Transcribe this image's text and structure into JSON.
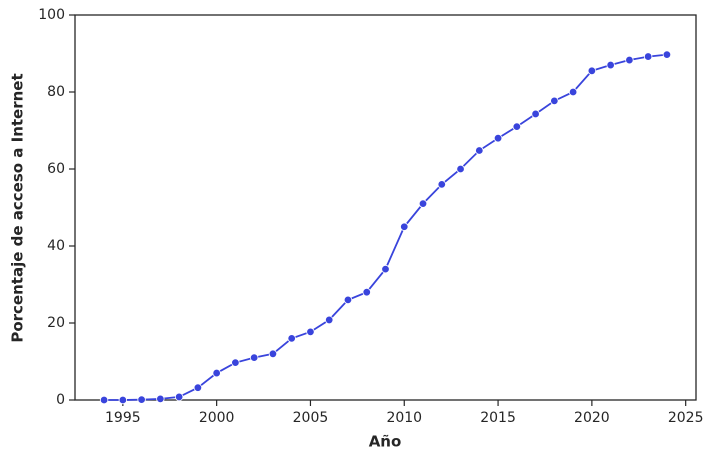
{
  "chart_data": {
    "type": "line",
    "xlabel": "Año",
    "ylabel": "Porcentaje de acceso a Internet",
    "x": [
      1994,
      1995,
      1996,
      1997,
      1998,
      1999,
      2000,
      2001,
      2002,
      2003,
      2004,
      2005,
      2006,
      2007,
      2008,
      2009,
      2010,
      2011,
      2012,
      2013,
      2014,
      2015,
      2016,
      2017,
      2018,
      2019,
      2020,
      2021,
      2022,
      2023,
      2024
    ],
    "series": [
      {
        "color": "#3944dc",
        "values": [
          0,
          0,
          0.1,
          0.3,
          0.8,
          3.2,
          7,
          9.7,
          11,
          12,
          16,
          17.7,
          20.8,
          26,
          28,
          34,
          45,
          51,
          56,
          60,
          64.8,
          68,
          71,
          74.3,
          77.7,
          80,
          85.5,
          87,
          88.3,
          89.2,
          89.7
        ]
      }
    ],
    "xlim": [
      1992.45,
      2025.55
    ],
    "xticks": [
      1995,
      2000,
      2005,
      2010,
      2015,
      2020,
      2025
    ],
    "ylim": [
      0,
      100
    ],
    "yticks": [
      0,
      20,
      40,
      60,
      80,
      100
    ],
    "grid": false,
    "markers": true
  }
}
